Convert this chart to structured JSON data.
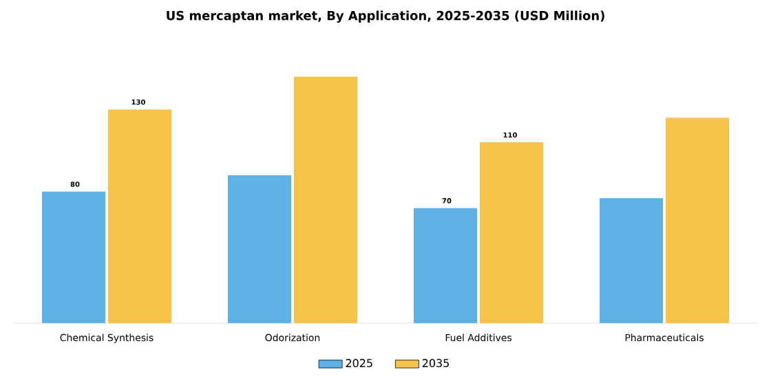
{
  "chart_data": {
    "type": "bar",
    "title": "US mercaptan market, By Application, 2025-2035 (USD Million)",
    "categories": [
      "Chemical Synthesis",
      "Odorization",
      "Fuel Additives",
      "Pharmaceuticals"
    ],
    "series": [
      {
        "name": "2025",
        "color": "#5db1e4",
        "values": [
          80,
          90,
          70,
          76
        ],
        "value_labels": [
          "80",
          null,
          "70",
          null
        ]
      },
      {
        "name": "2035",
        "color": "#f7c24a",
        "values": [
          130,
          150,
          110,
          125
        ],
        "value_labels": [
          "130",
          null,
          "110",
          null
        ]
      }
    ],
    "legend": "bottom"
  }
}
